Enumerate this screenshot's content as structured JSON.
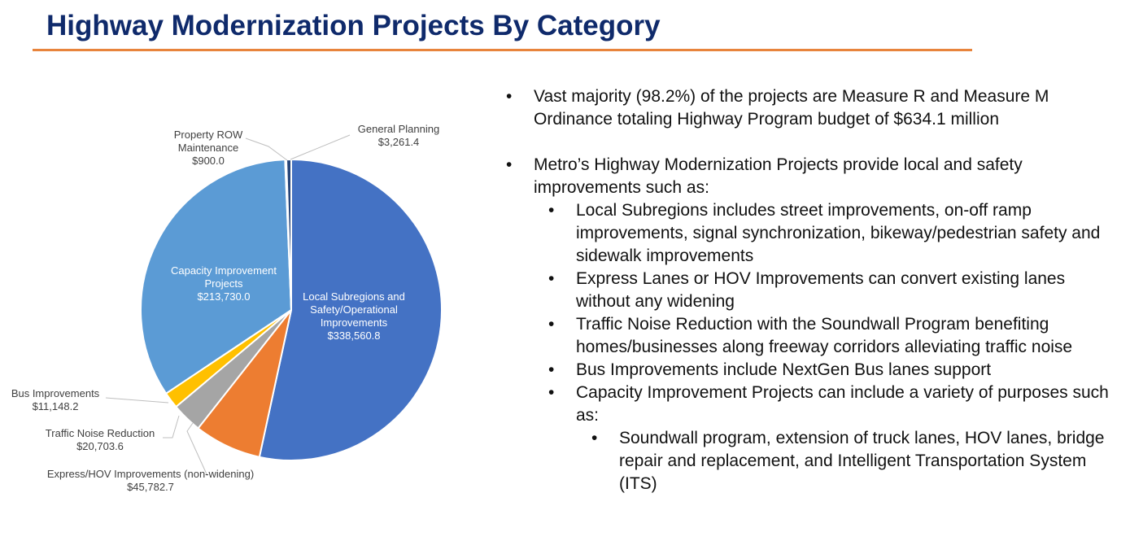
{
  "title": "Highway Modernization Projects By Category",
  "chart_data": {
    "type": "pie",
    "title": "",
    "start": "12 o'clock, clockwise",
    "slices": [
      {
        "label": [
          "Local Subregions and",
          "Safety/Operational",
          "Improvements"
        ],
        "value": 338560.8,
        "value_label": "$338,560.8",
        "color": "#4472c4",
        "label_inside": true
      },
      {
        "label": [
          "Express/HOV Improvements (non-widening)"
        ],
        "value": 45782.7,
        "value_label": "$45,782.7",
        "color": "#ed7d31",
        "label_inside": false
      },
      {
        "label": [
          "Traffic Noise Reduction"
        ],
        "value": 20703.6,
        "value_label": "$20,703.6",
        "color": "#a5a5a5",
        "label_inside": false
      },
      {
        "label": [
          "Bus Improvements"
        ],
        "value": 11148.2,
        "value_label": "$11,148.2",
        "color": "#ffc000",
        "label_inside": false
      },
      {
        "label": [
          "Capacity Improvement",
          "Projects"
        ],
        "value": 213730.0,
        "value_label": "$213,730.0",
        "color": "#5b9bd5",
        "label_inside": true
      },
      {
        "label": [
          "Property ROW",
          "Maintenance"
        ],
        "value": 900.0,
        "value_label": "$900.0",
        "color": "#5b9bd5",
        "label_inside": false
      },
      {
        "label": [
          "General Planning"
        ],
        "value": 3261.4,
        "value_label": "$3,261.4",
        "color": "#264478",
        "label_inside": false
      }
    ]
  },
  "bullets": [
    {
      "level": 1,
      "text": "Vast majority (98.2%) of the projects are Measure R and Measure M Ordinance totaling Highway Program budget of $634.1 million"
    },
    {
      "level": 1,
      "text": "Metro’s Highway Modernization Projects provide local and safety improvements such as:",
      "gap": true
    },
    {
      "level": 2,
      "text": "Local Subregions includes street improvements, on-off ramp improvements, signal synchronization, bikeway/pedestrian safety and sidewalk improvements"
    },
    {
      "level": 2,
      "text": "Express Lanes or HOV Improvements can convert existing lanes without any widening"
    },
    {
      "level": 2,
      "text": "Traffic Noise Reduction with the Soundwall Program benefiting homes/businesses along freeway corridors alleviating traffic noise"
    },
    {
      "level": 2,
      "text": "Bus Improvements include NextGen Bus lanes support"
    },
    {
      "level": 2,
      "text": "Capacity Improvement Projects can include a variety of purposes such as:"
    },
    {
      "level": 3,
      "text": "Soundwall program, extension of truck lanes, HOV lanes, bridge repair and replacement, and Intelligent Transportation System (ITS)"
    }
  ]
}
